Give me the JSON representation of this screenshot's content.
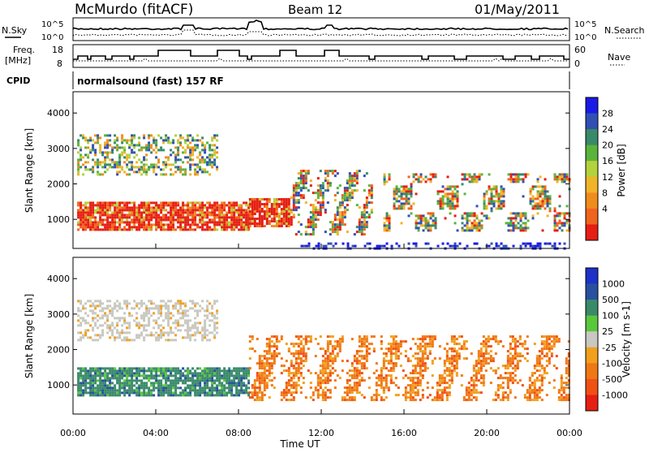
{
  "header": {
    "station": "McMurdo (fitACF)",
    "beam": "Beam 12",
    "date": "01/May/2011"
  },
  "strip_panels": {
    "noise": {
      "left_label": "N.Sky",
      "right_label": "N.Search",
      "left_ticks": [
        "10^5",
        "10^0"
      ],
      "right_ticks": [
        "10^5",
        "10^0"
      ]
    },
    "freq": {
      "left_label_1": "Freq.",
      "left_label_2": "[MHz]",
      "right_label": "Nave",
      "left_ticks": [
        "18",
        "8"
      ],
      "right_ticks": [
        "60",
        "0"
      ]
    },
    "cpid": {
      "label": "CPID",
      "text": "normalsound (fast) 157 RF"
    }
  },
  "chart_data": [
    {
      "type": "heatmap",
      "name": "power-panel",
      "ylabel": "Slant Range [km]",
      "ylim": [
        180,
        4600
      ],
      "yticks": [
        "1000",
        "2000",
        "3000",
        "4000"
      ],
      "xlim": [
        0,
        24
      ],
      "colorbar": {
        "label": "Power [dB]",
        "ticks": [
          "4",
          "8",
          "12",
          "16",
          "20",
          "24",
          "28"
        ],
        "colors": [
          "#1a1ae6",
          "#3050b4",
          "#3a8a6a",
          "#5ab43c",
          "#b4d23c",
          "#f0b428",
          "#f08c1e",
          "#f0641e",
          "#e61e14"
        ]
      },
      "regions": [
        {
          "t0": 0.2,
          "t1": 8.5,
          "r0": 700,
          "r1": 1500,
          "level": "high"
        },
        {
          "t0": 8.5,
          "t1": 10.5,
          "r0": 800,
          "r1": 1600,
          "level": "high"
        },
        {
          "t0": 0.2,
          "t1": 7.0,
          "r0": 2300,
          "r1": 3400,
          "level": "mixed"
        },
        {
          "t0": 10.5,
          "t1": 14.5,
          "r0": 600,
          "r1": 2400,
          "level": "streaks"
        },
        {
          "t0": 15.0,
          "t1": 24.0,
          "r0": 700,
          "r1": 2300,
          "level": "patches"
        },
        {
          "t0": 11.0,
          "t1": 24.0,
          "r0": 180,
          "r1": 350,
          "level": "low"
        }
      ]
    },
    {
      "type": "heatmap",
      "name": "velocity-panel",
      "ylabel": "Slant Range [km]",
      "ylim": [
        180,
        4600
      ],
      "yticks": [
        "1000",
        "2000",
        "3000",
        "4000"
      ],
      "xlim": [
        0,
        24
      ],
      "xticks": [
        "00:00",
        "04:00",
        "08:00",
        "12:00",
        "16:00",
        "20:00",
        "00:00"
      ],
      "xlabel": "Time UT",
      "colorbar": {
        "label": "Velocity [m s-1]",
        "ticks": [
          "1000",
          "500",
          "100",
          "25",
          "-25",
          "-100",
          "-500",
          "-1000"
        ],
        "colors": [
          "#1e32c8",
          "#2850a0",
          "#3a8a6a",
          "#5ac83c",
          "#c8c8c0",
          "#f0a01e",
          "#f07814",
          "#f05014",
          "#e61e14"
        ]
      },
      "regions": [
        {
          "t0": 0.2,
          "t1": 8.5,
          "r0": 700,
          "r1": 1500,
          "level": "positive"
        },
        {
          "t0": 0.2,
          "t1": 7.0,
          "r0": 2300,
          "r1": 3400,
          "level": "near-zero"
        },
        {
          "t0": 8.5,
          "t1": 24.0,
          "r0": 600,
          "r1": 2400,
          "level": "negative"
        }
      ]
    }
  ]
}
